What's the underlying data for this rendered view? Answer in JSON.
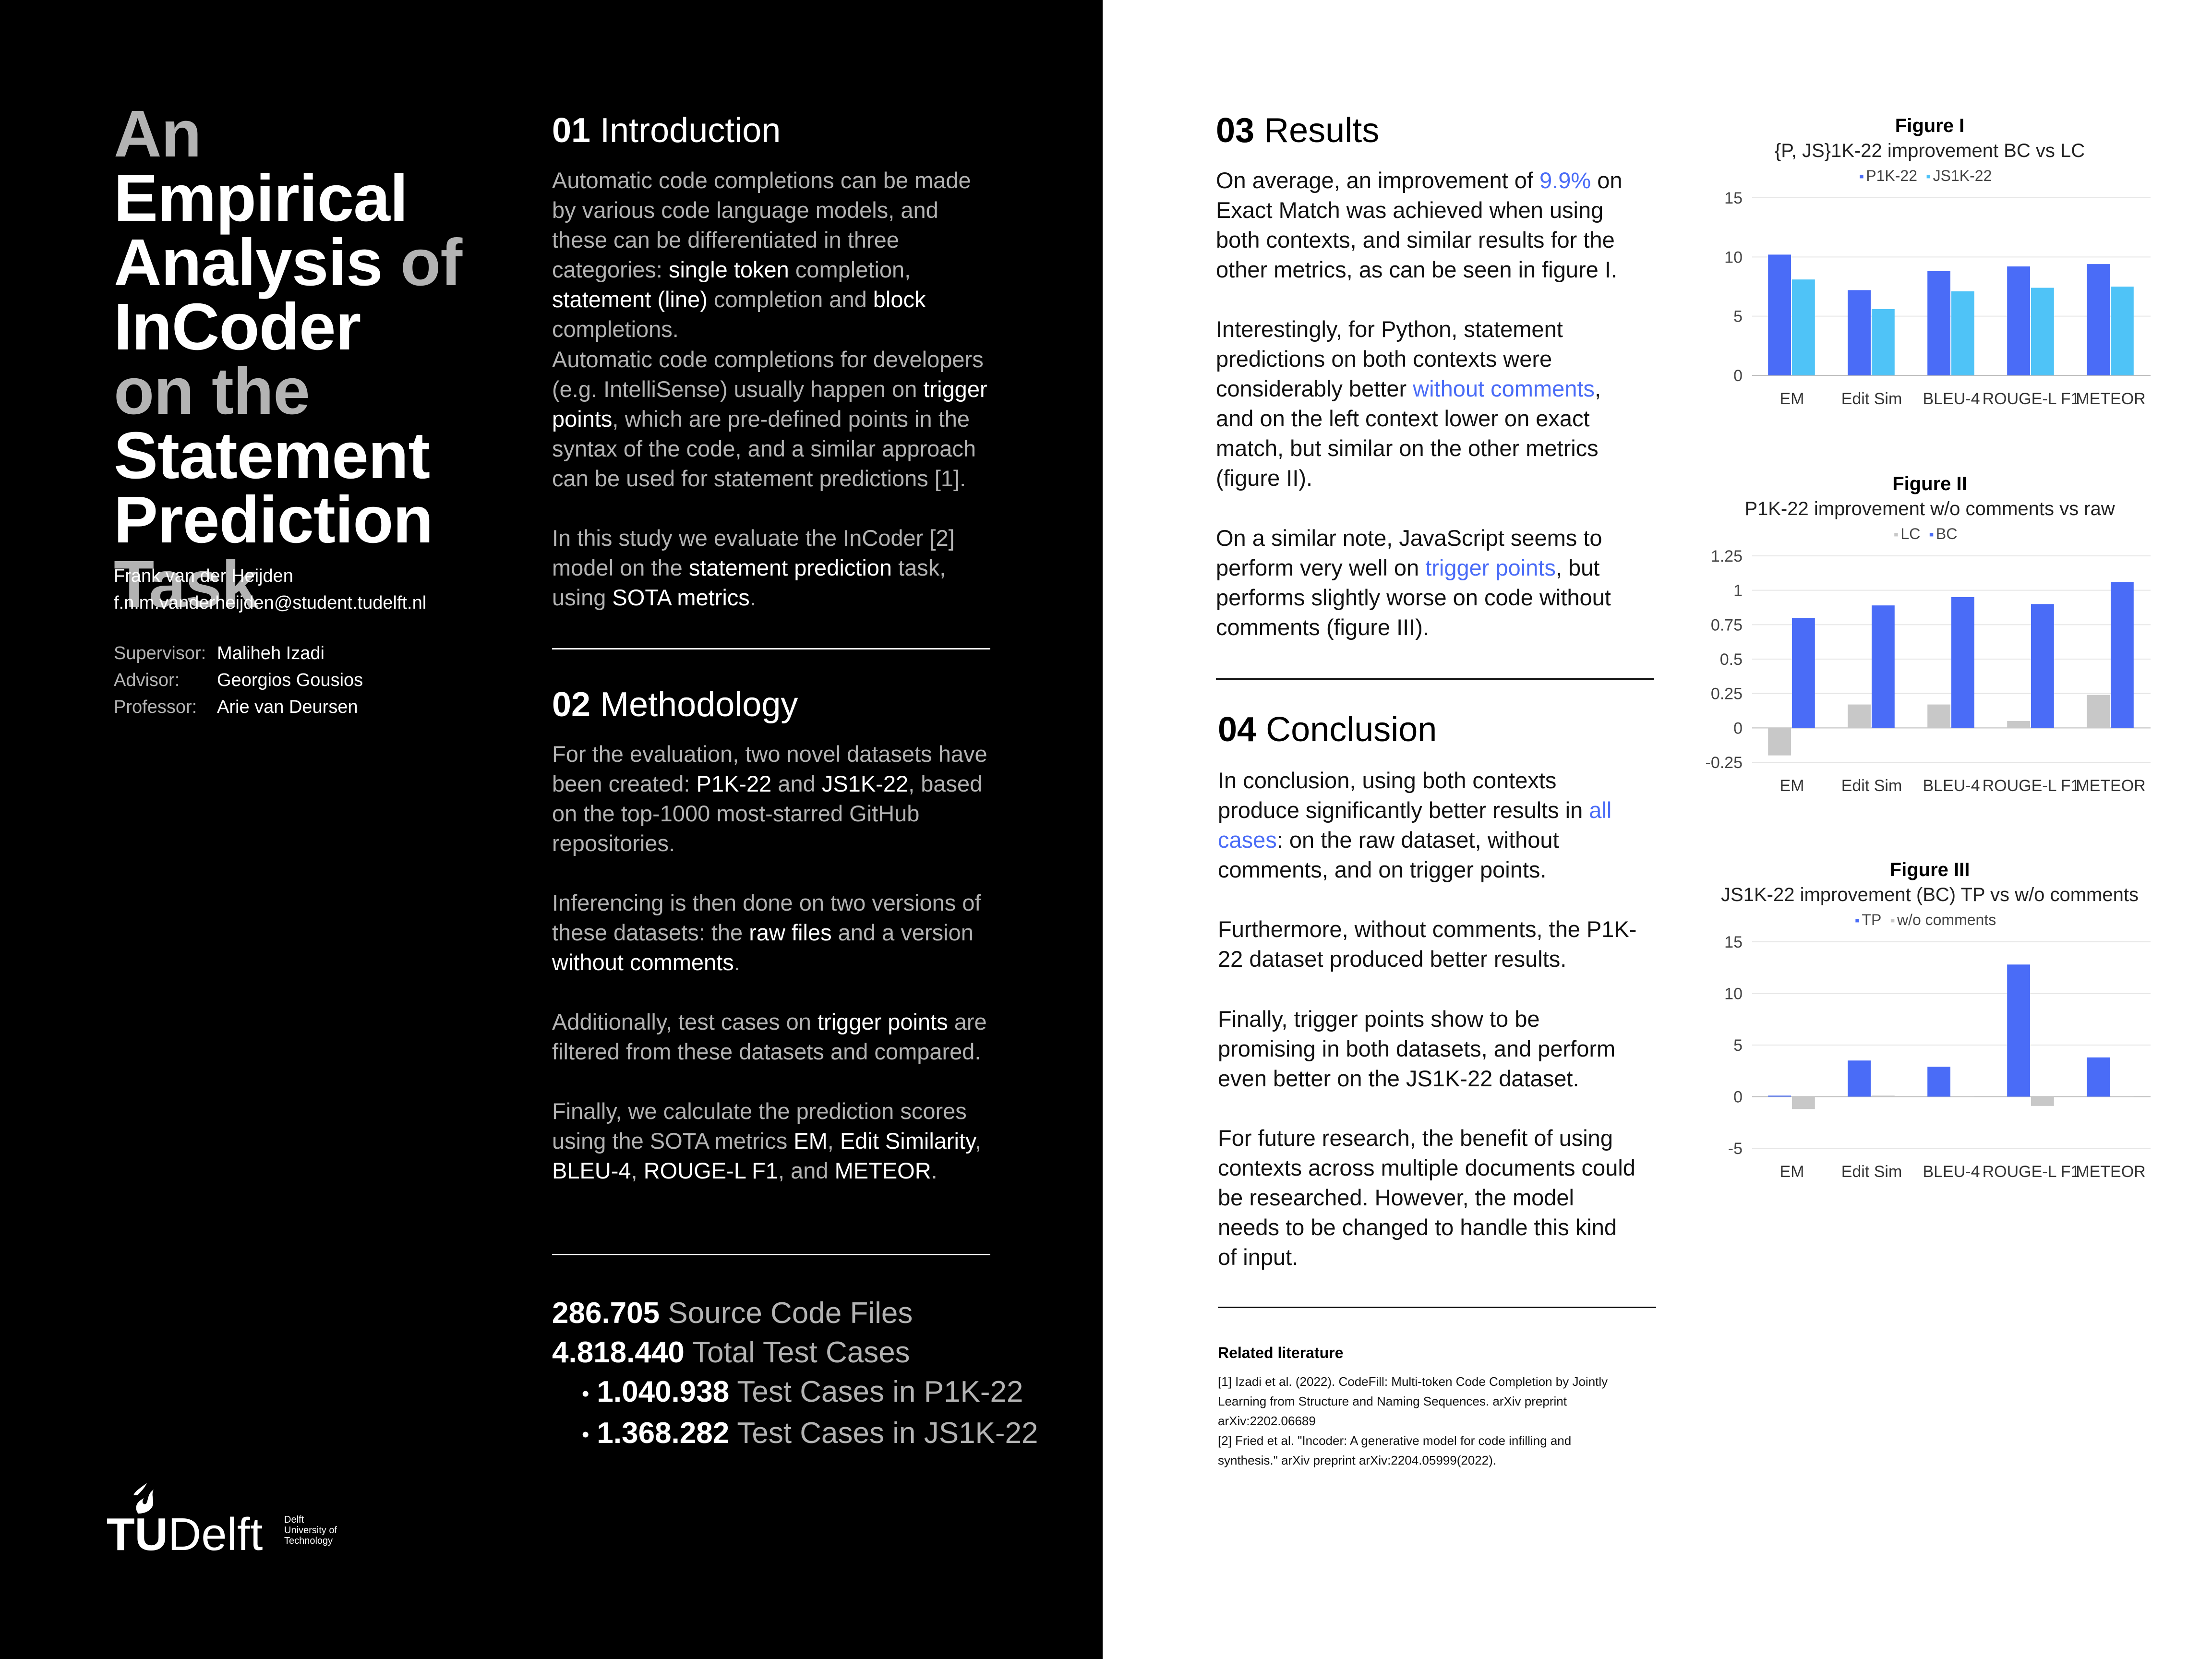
{
  "title": {
    "lines": [
      {
        "segments": [
          {
            "text": "An ",
            "grey": true
          },
          {
            "text": "Empirical",
            "grey": false
          }
        ]
      },
      {
        "segments": [
          {
            "text": "Analysis ",
            "grey": false
          },
          {
            "text": "of",
            "grey": true
          }
        ]
      },
      {
        "segments": [
          {
            "text": "InCoder",
            "grey": false
          }
        ]
      },
      {
        "segments": [
          {
            "text": "on the",
            "grey": true
          }
        ]
      },
      {
        "segments": [
          {
            "text": "Statement",
            "grey": false
          }
        ]
      },
      {
        "segments": [
          {
            "text": "Prediction",
            "grey": false
          }
        ]
      },
      {
        "segments": [
          {
            "text": "Task",
            "grey": true
          }
        ]
      }
    ]
  },
  "author": {
    "name": "Frank van der Heijden",
    "email": "f.n.m.vanderheijden@student.tudelft.nl"
  },
  "staff": [
    {
      "role": "Supervisor:",
      "name": "Maliheh Izadi"
    },
    {
      "role": "Advisor:",
      "name": "Georgios Gousios"
    },
    {
      "role": "Professor:",
      "name": "Arie van Deursen"
    }
  ],
  "intro": {
    "num": "01",
    "heading": "Introduction",
    "p1": [
      {
        "t": "Automatic code completions can be made by various code language models, and these can be differentiated in three categories: "
      },
      {
        "t": "single token",
        "hl": true
      },
      {
        "t": " completion, "
      },
      {
        "t": "statement (line)",
        "hl": true
      },
      {
        "t": " completion and "
      },
      {
        "t": "block",
        "hl": true
      },
      {
        "t": " completions."
      }
    ],
    "p2": [
      {
        "t": "Automatic code completions for developers (e.g. IntelliSense) usually happen on "
      },
      {
        "t": "trigger points",
        "hl": true
      },
      {
        "t": ", which are pre-defined points in the syntax of the code, and a similar approach can be used for statement predictions [1]."
      }
    ],
    "p3": [
      {
        "t": "In this study we evaluate the InCoder [2] model on the "
      },
      {
        "t": "statement prediction",
        "hl": true
      },
      {
        "t": " task, using "
      },
      {
        "t": "SOTA metrics",
        "hl": true
      },
      {
        "t": "."
      }
    ]
  },
  "methodology": {
    "num": "02",
    "heading": "Methodology",
    "p1": [
      {
        "t": "For the evaluation, two novel datasets have been created: "
      },
      {
        "t": "P1K-22",
        "hl": true
      },
      {
        "t": " and "
      },
      {
        "t": "JS1K-22",
        "hl": true
      },
      {
        "t": ", based on the top-1000 most-starred GitHub repositories."
      }
    ],
    "p2": [
      {
        "t": "Inferencing is then done on two versions of these datasets: the "
      },
      {
        "t": "raw files",
        "hl": true
      },
      {
        "t": " and a version "
      },
      {
        "t": "without comments",
        "hl": true
      },
      {
        "t": "."
      }
    ],
    "p3": [
      {
        "t": "Additionally, test cases on "
      },
      {
        "t": "trigger points",
        "hl": true
      },
      {
        "t": " are filtered from these datasets and compared."
      }
    ],
    "p4": [
      {
        "t": "Finally, we calculate the prediction scores using the SOTA metrics "
      },
      {
        "t": "EM",
        "hl": true
      },
      {
        "t": ", "
      },
      {
        "t": "Edit Similarity",
        "hl": true
      },
      {
        "t": ", "
      },
      {
        "t": "BLEU-4",
        "hl": true
      },
      {
        "t": ",  "
      },
      {
        "t": "ROUGE-L F1",
        "hl": true
      },
      {
        "t": ", and "
      },
      {
        "t": "METEOR",
        "hl": true
      },
      {
        "t": "."
      }
    ]
  },
  "stats": [
    {
      "value": "286.705",
      "label": "Source Code Files",
      "bullet": false
    },
    {
      "value": "4.818.440",
      "label": "Total Test Cases",
      "bullet": false
    },
    {
      "value": "1.040.938",
      "label": "Test Cases in P1K-22",
      "bullet": true
    },
    {
      "value": "1.368.282",
      "label": "Test Cases in JS1K-22",
      "bullet": true
    }
  ],
  "logo": {
    "text_bold": "TU",
    "text": "Delft",
    "small": [
      "Delft",
      "University of",
      "Technology"
    ]
  },
  "results": {
    "num": "03",
    "heading": "Results",
    "p1": [
      {
        "t": "On average, an improvement of "
      },
      {
        "t": "9.9%",
        "blue": true
      },
      {
        "t": " on Exact Match was achieved when using both contexts, and similar results for the other metrics, as can be seen in figure I."
      }
    ],
    "p2": [
      {
        "t": "Interestingly, for Python, statement predictions on both contexts were considerably better "
      },
      {
        "t": "without comments",
        "blue": true
      },
      {
        "t": ", and on the left context lower on exact match, but similar on the other metrics (figure II)."
      }
    ],
    "p3": [
      {
        "t": "On a similar note, JavaScript seems to perform very well on "
      },
      {
        "t": "trigger points",
        "blue": true
      },
      {
        "t": ", but performs slightly worse on code without comments (figure III)."
      }
    ]
  },
  "conclusion": {
    "num": "04",
    "heading": "Conclusion",
    "p1": [
      {
        "t": "In conclusion, using both contexts produce significantly better results in "
      },
      {
        "t": "all cases",
        "blue": true
      },
      {
        "t": ":  on the raw dataset, without comments, and on trigger points."
      }
    ],
    "p2": [
      {
        "t": "Furthermore, without comments, the P1K-22 dataset produced better results."
      }
    ],
    "p3": [
      {
        "t": "Finally, trigger points show to be promising in both datasets, and perform even better on the JS1K-22 dataset."
      }
    ],
    "p4": [
      {
        "t": "For future research, the benefit of using contexts across multiple documents could be researched. However, the model needs to be changed to handle this kind of input."
      }
    ]
  },
  "literature": {
    "heading": "Related literature",
    "refs": [
      "[1] Izadi et al. (2022). CodeFill: Multi-token Code Completion by Jointly Learning from Structure and Naming Sequences. arXiv preprint arXiv:2202.06689",
      "[2] Fried et al. \"Incoder: A generative model for code infilling and synthesis.\" arXiv preprint arXiv:2204.05999(2022)."
    ]
  },
  "colors": {
    "blue": "#4a6cf7",
    "light_blue": "#4fc3f7",
    "grey": "#c8c8c8"
  },
  "chart_data": [
    {
      "type": "bar",
      "title": "Figure I",
      "subtitle": "{P, JS}1K-22 improvement BC vs LC",
      "categories": [
        "EM",
        "Edit Sim",
        "BLEU-4",
        "ROUGE-L F1",
        "METEOR"
      ],
      "series": [
        {
          "name": "P1K-22",
          "color": "#4a6cf7",
          "values": [
            10.2,
            7.2,
            8.8,
            9.2,
            9.4
          ]
        },
        {
          "name": "JS1K-22",
          "color": "#4fc3f7",
          "values": [
            8.1,
            5.6,
            7.1,
            7.4,
            7.5
          ]
        }
      ],
      "ylim": [
        0,
        15
      ],
      "yticks": [
        0,
        5,
        10,
        15
      ],
      "ytick_labels": [
        "0",
        "5",
        "10",
        "15"
      ],
      "grid": true,
      "legend": "top"
    },
    {
      "type": "bar",
      "title": "Figure II",
      "subtitle": "P1K-22 improvement w/o comments vs raw",
      "categories": [
        "EM",
        "Edit Sim",
        "BLEU-4",
        "ROUGE-L F1",
        "METEOR"
      ],
      "series": [
        {
          "name": "LC",
          "color": "#c8c8c8",
          "values": [
            -0.2,
            0.17,
            0.17,
            0.05,
            0.24
          ]
        },
        {
          "name": "BC",
          "color": "#4a6cf7",
          "values": [
            0.8,
            0.89,
            0.95,
            0.9,
            1.06
          ]
        }
      ],
      "ylim": [
        -0.25,
        1.25
      ],
      "yticks": [
        -0.25,
        0,
        0.25,
        0.5,
        0.75,
        1,
        1.25
      ],
      "ytick_labels": [
        "-0.25",
        "0",
        "0.25",
        "0.5",
        "0.75",
        "1",
        "1.25"
      ],
      "grid": true,
      "legend": "top"
    },
    {
      "type": "bar",
      "title": "Figure III",
      "subtitle": "JS1K-22 improvement (BC) TP vs w/o comments",
      "categories": [
        "EM",
        "Edit Sim",
        "BLEU-4",
        "ROUGE-L F1",
        "METEOR"
      ],
      "series": [
        {
          "name": "TP",
          "color": "#4a6cf7",
          "values": [
            0.1,
            3.5,
            2.9,
            12.8,
            3.8
          ]
        },
        {
          "name": "w/o comments",
          "color": "#c8c8c8",
          "values": [
            -1.2,
            0.1,
            0.05,
            -0.9,
            0.05
          ]
        }
      ],
      "ylim": [
        -5,
        15
      ],
      "yticks": [
        -5,
        0,
        5,
        10,
        15
      ],
      "ytick_labels": [
        "-5",
        "0",
        "5",
        "10",
        "15"
      ],
      "grid": true,
      "legend": "top"
    }
  ]
}
